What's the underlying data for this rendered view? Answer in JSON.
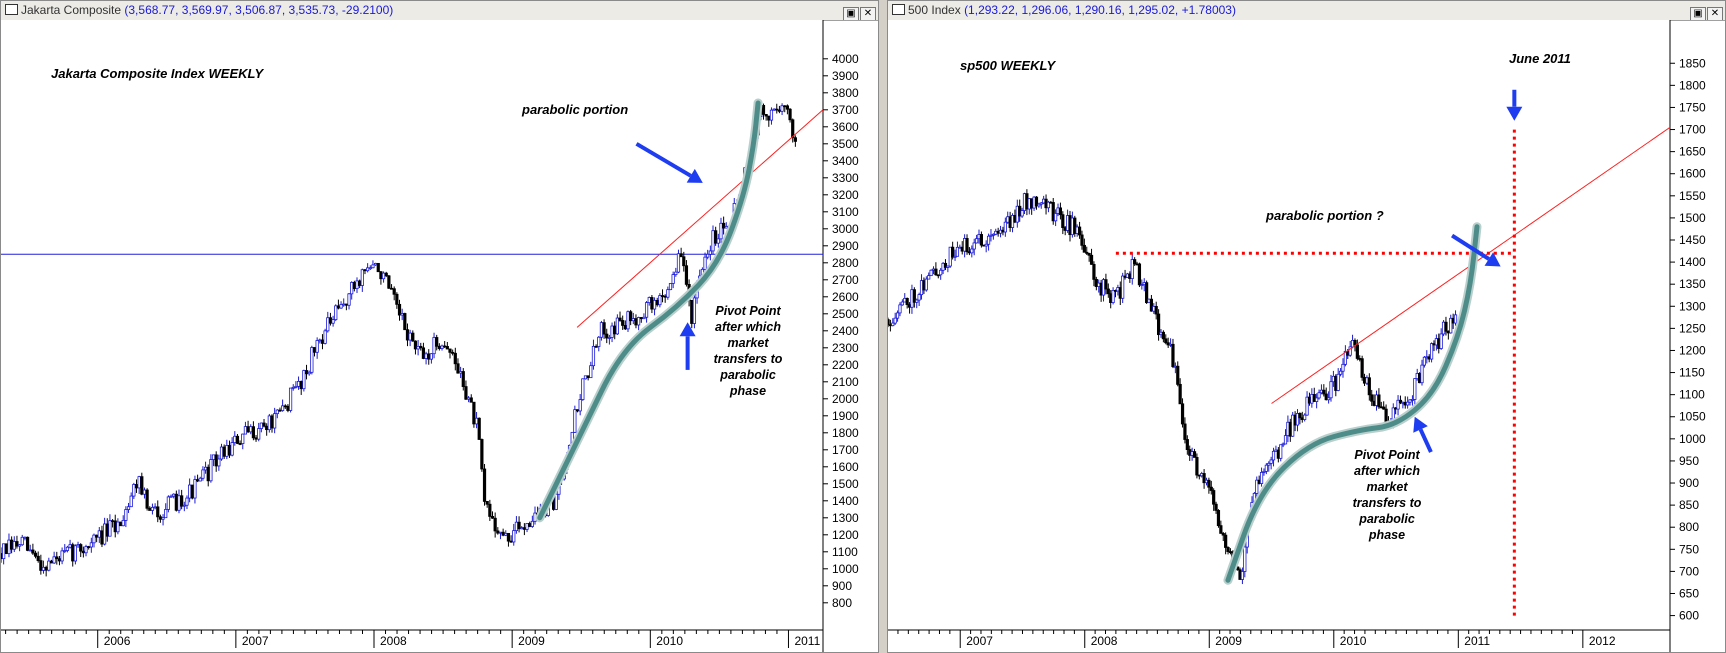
{
  "colors": {
    "up": "#1a1ad6",
    "down": "#000000",
    "trend": "#ff2020",
    "curve": "#4d8c88",
    "arrow": "#1e3cf0",
    "hline": "#2020d8",
    "dotted": "#ff0000"
  },
  "charts": [
    {
      "window_title": "Jakarta Composite",
      "window_values": "(3,568.77, 3,569.97, 3,506.87, 3,535.73, -29.2100)",
      "chart_title": "Jakarta Composite Index WEEKLY",
      "annotations": {
        "parabolic": "parabolic portion",
        "pivot": [
          "Pivot Point",
          "after which",
          "market",
          "transfers to",
          "parabolic",
          "phase"
        ]
      }
    },
    {
      "window_title": "500 Index",
      "window_values": "(1,293.22, 1,296.06, 1,290.16, 1,295.02, +1.78003)",
      "chart_title": "sp500 WEEKLY",
      "annotations": {
        "parabolic": "parabolic portion ?",
        "pivot": [
          "Pivot Point",
          "after which",
          "market",
          "transfers to",
          "parabolic",
          "phase"
        ],
        "date_marker": "June 2011"
      }
    }
  ],
  "chart_data": [
    {
      "type": "candlestick",
      "title": "Jakarta Composite Index WEEKLY",
      "x_tick_labels": [
        "2006",
        "2007",
        "2008",
        "2009",
        "2010",
        "2011"
      ],
      "y_tick_labels": [
        "800",
        "900",
        "1000",
        "1100",
        "1200",
        "1300",
        "1400",
        "1500",
        "1600",
        "1700",
        "1800",
        "1900",
        "2000",
        "2100",
        "2200",
        "2300",
        "2400",
        "2500",
        "2600",
        "2700",
        "2800",
        "2900",
        "3000",
        "3100",
        "3200",
        "3300",
        "3400",
        "3500",
        "3600",
        "3700",
        "3800",
        "3900",
        "4000"
      ],
      "ylim": [
        740,
        4040
      ],
      "xlim": [
        2005.3,
        2011.25
      ],
      "series": [
        {
          "x": [
            2005.3,
            2005.45,
            2005.6,
            2005.75,
            2005.9,
            2006.0,
            2006.15,
            2006.3,
            2006.37,
            2006.5,
            2006.7,
            2006.9,
            2007.1,
            2007.3,
            2007.5,
            2007.6,
            2007.75,
            2007.95,
            2008.05,
            2008.2,
            2008.35,
            2008.5,
            2008.65,
            2008.75,
            2008.8,
            2008.95,
            2009.1,
            2009.3,
            2009.5,
            2009.65,
            2009.85,
            2010.0,
            2010.1,
            2010.22,
            2010.3,
            2010.45,
            2010.6,
            2010.7,
            2010.8,
            2010.85,
            2010.95,
            2011.05
          ],
          "y": [
            1090,
            1150,
            1020,
            1070,
            1130,
            1180,
            1260,
            1550,
            1320,
            1360,
            1470,
            1680,
            1800,
            1880,
            2150,
            2350,
            2520,
            2780,
            2750,
            2450,
            2230,
            2360,
            2090,
            1810,
            1380,
            1160,
            1280,
            1380,
            2050,
            2400,
            2460,
            2550,
            2600,
            2850,
            2500,
            2950,
            3100,
            3350,
            3700,
            3650,
            3750,
            3536
          ]
        }
      ],
      "horizontal_line_y": 2850,
      "trendline": {
        "x": [
          2009.47,
          2011.25
        ],
        "y": [
          2420,
          3700
        ]
      },
      "curve": {
        "x": [
          2009.2,
          2009.5,
          2009.8,
          2010.2,
          2010.5,
          2010.68,
          2010.75,
          2010.78
        ],
        "y": [
          1300,
          1800,
          2300,
          2540,
          2800,
          3200,
          3500,
          3740
        ]
      },
      "arrows": [
        {
          "from": [
            2009.9,
            3500
          ],
          "to": [
            2010.38,
            3270
          ]
        },
        {
          "from": [
            2010.27,
            2170
          ],
          "to": [
            2010.27,
            2450
          ]
        }
      ]
    },
    {
      "type": "candlestick",
      "title": "sp500 WEEKLY",
      "x_tick_labels": [
        "2007",
        "2008",
        "2009",
        "2010",
        "2011",
        "2012"
      ],
      "y_tick_labels": [
        "600",
        "650",
        "700",
        "750",
        "800",
        "850",
        "900",
        "950",
        "1000",
        "1050",
        "1100",
        "1150",
        "1200",
        "1250",
        "1300",
        "1350",
        "1400",
        "1450",
        "1500",
        "1550",
        "1600",
        "1650",
        "1700",
        "1750",
        "1800",
        "1850"
      ],
      "ylim": [
        590,
        1880
      ],
      "xlim": [
        2006.42,
        2012.7
      ],
      "series": [
        {
          "x": [
            2006.42,
            2006.6,
            2006.8,
            2006.95,
            2007.15,
            2007.35,
            2007.5,
            2007.62,
            2007.8,
            2007.95,
            2008.1,
            2008.25,
            2008.4,
            2008.55,
            2008.7,
            2008.8,
            2008.95,
            2009.05,
            2009.15,
            2009.25,
            2009.35,
            2009.5,
            2009.7,
            2009.85,
            2010.0,
            2010.15,
            2010.3,
            2010.45,
            2010.6,
            2010.75,
            2010.9,
            2010.98
          ],
          "y": [
            1270,
            1320,
            1380,
            1420,
            1450,
            1480,
            1530,
            1550,
            1500,
            1470,
            1350,
            1320,
            1400,
            1280,
            1200,
            1000,
            900,
            850,
            750,
            690,
            880,
            950,
            1050,
            1090,
            1120,
            1210,
            1100,
            1050,
            1090,
            1180,
            1250,
            1295
          ]
        }
      ],
      "trendline": {
        "x": [
          2009.5,
          2012.7
        ],
        "y": [
          1080,
          1705
        ]
      },
      "curve": {
        "x": [
          2009.15,
          2009.4,
          2009.8,
          2010.2,
          2010.5,
          2010.8,
          2011.0,
          2011.1,
          2011.15
        ],
        "y": [
          680,
          880,
          990,
          1020,
          1030,
          1100,
          1230,
          1350,
          1480
        ]
      },
      "dotted_h": {
        "x": [
          2008.25,
          2011.45
        ],
        "y": 1420
      },
      "dotted_v": {
        "x": 2011.45,
        "y": [
          600,
          1700
        ]
      },
      "arrows": [
        {
          "from": [
            2010.95,
            1460
          ],
          "to": [
            2011.34,
            1390
          ]
        },
        {
          "from": [
            2010.78,
            970
          ],
          "to": [
            2010.65,
            1050
          ]
        },
        {
          "from": [
            2011.45,
            1790
          ],
          "to": [
            2011.45,
            1720
          ]
        }
      ]
    }
  ]
}
